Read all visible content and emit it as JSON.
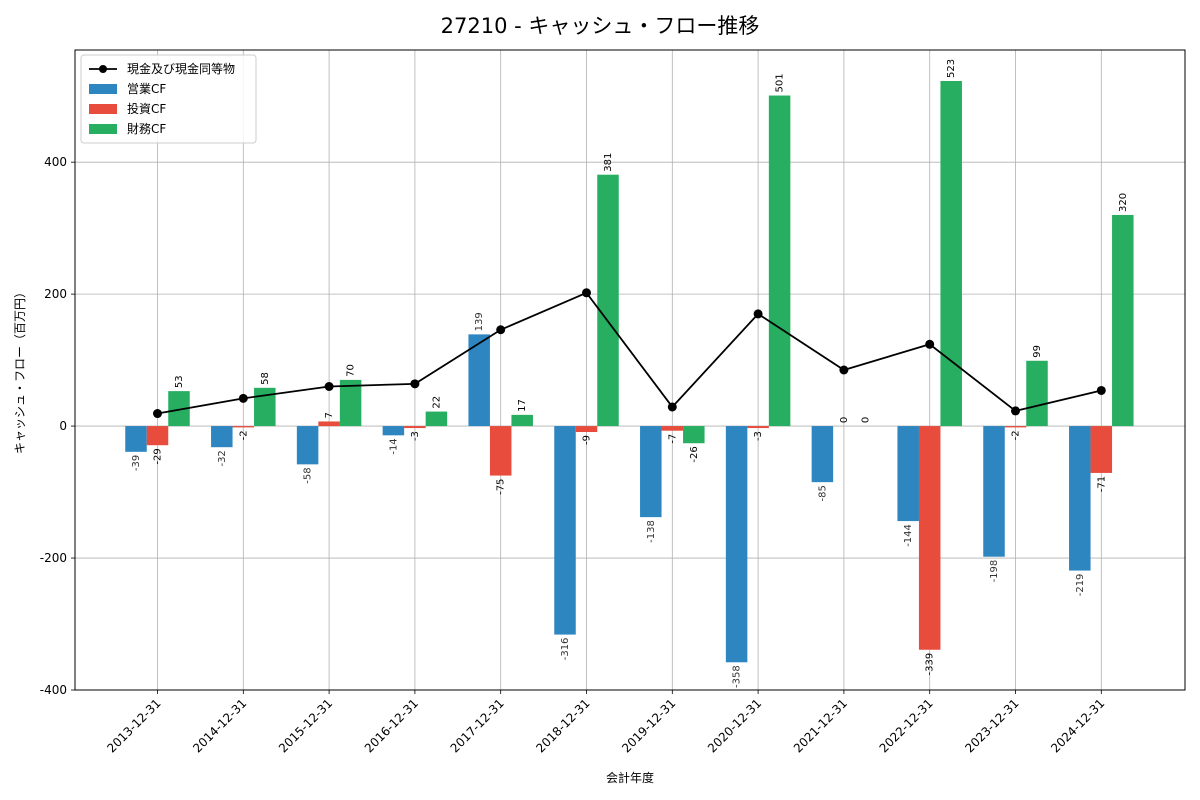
{
  "chart_data": {
    "type": "bar",
    "title": "27210 - キャッシュ・フロー推移",
    "xlabel": "会計年度",
    "ylabel": "キャッシュ・フロー（百万円）",
    "ylim": [
      -400,
      570
    ],
    "yticks": [
      -400,
      -200,
      0,
      200,
      400
    ],
    "grid": true,
    "legend_position": "top-left",
    "categories": [
      "2013-12-31",
      "2014-12-31",
      "2015-12-31",
      "2016-12-31",
      "2017-12-31",
      "2018-12-31",
      "2019-12-31",
      "2020-12-31",
      "2021-12-31",
      "2022-12-31",
      "2023-12-31",
      "2024-12-31"
    ],
    "series": [
      {
        "name": "営業CF",
        "kind": "bar",
        "color": "#2e86c1",
        "values": [
          -39,
          -32,
          -58,
          -14,
          139,
          -316,
          -138,
          -358,
          -85,
          -144,
          -198,
          -219
        ],
        "labels": [
          "-39",
          "-32",
          "-58",
          "-14",
          "139",
          "-316",
          "-138",
          "-358",
          "-85",
          "-144",
          "-198",
          "-219"
        ]
      },
      {
        "name": "投資CF",
        "kind": "bar",
        "color": "#e74c3c",
        "values": [
          -29,
          -2,
          7,
          -3,
          -75,
          -9,
          -7,
          -3,
          0,
          -339,
          -2,
          -71
        ],
        "labels": [
          "-29",
          "-2",
          "7",
          "-3",
          "-75",
          "-9",
          "-7",
          "-3",
          "0",
          "-339",
          "-2",
          "-71"
        ]
      },
      {
        "name": "財務CF",
        "kind": "bar",
        "color": "#27ae60",
        "values": [
          53,
          58,
          70,
          22,
          17,
          381,
          -26,
          501,
          0,
          523,
          99,
          320
        ],
        "labels": [
          "53",
          "58",
          "70",
          "22",
          "17",
          "381",
          "-26",
          "501",
          "0",
          "523",
          "99",
          "320"
        ]
      },
      {
        "name": "現金及び現金同等物",
        "kind": "line",
        "color": "#000000",
        "values": [
          19,
          42,
          60,
          64,
          146,
          202,
          29,
          170,
          85,
          124,
          23,
          54
        ]
      }
    ]
  }
}
